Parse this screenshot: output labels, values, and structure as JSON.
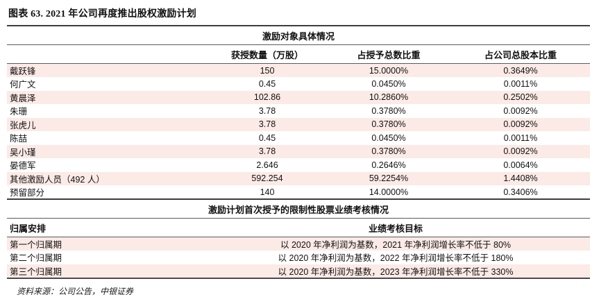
{
  "title": "图表 63. 2021 年公司再度推出股权激励计划",
  "table1": {
    "section_title": "激励对象具体情况",
    "columns": [
      "",
      "获授数量（万股）",
      "占授予总数比重",
      "占公司总股本比重"
    ],
    "rows": [
      [
        "戴跃锋",
        "150",
        "15.0000%",
        "0.3649%"
      ],
      [
        "何广文",
        "0.45",
        "0.0450%",
        "0.0011%"
      ],
      [
        "黄晨泽",
        "102.86",
        "10.2860%",
        "0.2502%"
      ],
      [
        "朱珊",
        "3.78",
        "0.3780%",
        "0.0092%"
      ],
      [
        "张虎儿",
        "3.78",
        "0.3780%",
        "0.0092%"
      ],
      [
        "陈喆",
        "0.45",
        "0.0450%",
        "0.0011%"
      ],
      [
        "吴小瑾",
        "3.78",
        "0.3780%",
        "0.0092%"
      ],
      [
        "晏德军",
        "2.646",
        "0.2646%",
        "0.0064%"
      ],
      [
        "其他激励人员（492 人）",
        "592.254",
        "59.2254%",
        "1.4408%"
      ],
      [
        "预留部分",
        "140",
        "14.0000%",
        "0.3406%"
      ]
    ]
  },
  "table2": {
    "section_title": "激励计划首次授予的限制性股票业绩考核情况",
    "columns": [
      "归属安排",
      "业绩考核目标"
    ],
    "rows": [
      [
        "第一个归属期",
        "以 2020 年净利润为基数，2021 年净利润增长率不低于 80%"
      ],
      [
        "第二个归属期",
        "以 2020 年净利润为基数，2022 年净利润增长率不低于 180%"
      ],
      [
        "第三个归属期",
        "以 2020 年净利润为基数，2023 年净利润增长率不低于 330%"
      ]
    ]
  },
  "footer": {
    "source": "资料来源：公司公告，中银证券"
  },
  "colors": {
    "row_highlight": "#fbeae6",
    "rule": "#3c3c3c"
  }
}
